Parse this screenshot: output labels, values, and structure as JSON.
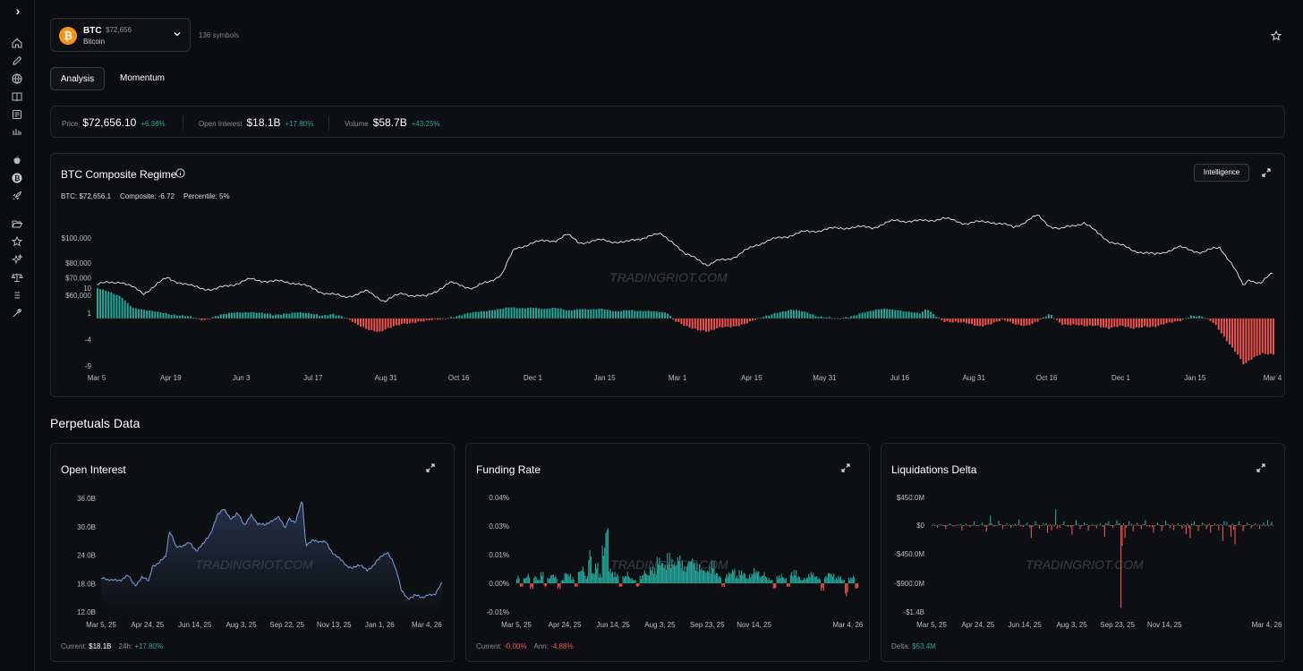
{
  "header": {
    "symbol": {
      "ticker": "BTC",
      "price": "$72,656",
      "name": "Bitcoin",
      "logo_glyph": "₿"
    },
    "symbols_count": "136 symbols"
  },
  "tabs": [
    {
      "label": "Analysis",
      "active": true
    },
    {
      "label": "Momentum",
      "active": false
    }
  ],
  "stats": {
    "price": {
      "label": "Price",
      "value": "$72,656.10",
      "change": "+6.38%"
    },
    "open_interest": {
      "label": "Open Interest",
      "value": "$18.1B",
      "change": "+17.80%"
    },
    "volume": {
      "label": "Volume",
      "value": "$58.7B",
      "change": "+43.25%"
    }
  },
  "regime": {
    "title": "BTC Composite Regime",
    "intelligence_label": "Intelligence",
    "meta": {
      "btc": "BTC: $72,656.1",
      "composite": "Composite: -6.72",
      "percentile": "Percentile: 5%"
    },
    "watermark": "TRADINGRIOT.COM"
  },
  "perps": {
    "title": "Perpetuals Data",
    "open_interest": {
      "title": "Open Interest",
      "current_label": "Current:",
      "current_value": "$18.1B",
      "change_label": "24h:",
      "change_value": "+17.80%"
    },
    "funding_rate": {
      "title": "Funding Rate",
      "current_label": "Current:",
      "current_value": "-0.00%",
      "ann_label": "Ann:",
      "ann_value": "-4.88%"
    },
    "liquidations": {
      "title": "Liquidations Delta",
      "delta_label": "Delta:",
      "delta_value": "$53.4M"
    }
  },
  "colors": {
    "up": "#26a69a",
    "down": "#ef5350",
    "oi_line": "#7c9fe0",
    "accent_btc": "#f7931a"
  },
  "chart_data": [
    {
      "id": "regime",
      "type": "line",
      "title": "BTC Composite Regime",
      "price_ticks": [
        "$100,000",
        "$80,000",
        "$70,000",
        "$60,000"
      ],
      "price_tick_values": [
        100000,
        80000,
        70000,
        60000
      ],
      "composite_ticks": [
        "10",
        "1",
        "-4",
        "-9"
      ],
      "composite_tick_values": [
        10,
        1,
        -4,
        -9
      ],
      "x_ticks": [
        "Mar 5",
        "Apr 19",
        "Jun 3",
        "Jul 17",
        "Aug 31",
        "Oct 16",
        "Dec 1",
        "Jan 15",
        "Mar 1",
        "Apr 15",
        "May 31",
        "Jul 16",
        "Aug 31",
        "Oct 16",
        "Dec 1",
        "Jan 15",
        "Mar 4"
      ],
      "x_tick_pos": [
        0,
        0.063,
        0.123,
        0.184,
        0.246,
        0.308,
        0.371,
        0.432,
        0.494,
        0.557,
        0.619,
        0.683,
        0.746,
        0.808,
        0.871,
        0.934,
        1.0
      ],
      "price_series": [
        [
          0,
          66000
        ],
        [
          0.02,
          68000
        ],
        [
          0.04,
          61000
        ],
        [
          0.06,
          70000
        ],
        [
          0.08,
          65000
        ],
        [
          0.1,
          63000
        ],
        [
          0.13,
          69000
        ],
        [
          0.15,
          68000
        ],
        [
          0.17,
          67000
        ],
        [
          0.19,
          62000
        ],
        [
          0.21,
          59000
        ],
        [
          0.23,
          62000
        ],
        [
          0.245,
          57000
        ],
        [
          0.26,
          61000
        ],
        [
          0.28,
          59000
        ],
        [
          0.3,
          67000
        ],
        [
          0.32,
          64000
        ],
        [
          0.335,
          68000
        ],
        [
          0.345,
          73000
        ],
        [
          0.355,
          90000
        ],
        [
          0.37,
          96000
        ],
        [
          0.39,
          98000
        ],
        [
          0.4,
          103000
        ],
        [
          0.41,
          96000
        ],
        [
          0.43,
          98000
        ],
        [
          0.45,
          96000
        ],
        [
          0.47,
          102000
        ],
        [
          0.48,
          103000
        ],
        [
          0.49,
          97000
        ],
        [
          0.5,
          86000
        ],
        [
          0.51,
          84000
        ],
        [
          0.52,
          78000
        ],
        [
          0.53,
          82000
        ],
        [
          0.545,
          85000
        ],
        [
          0.56,
          94000
        ],
        [
          0.58,
          100000
        ],
        [
          0.6,
          105000
        ],
        [
          0.62,
          108000
        ],
        [
          0.64,
          110000
        ],
        [
          0.66,
          110000
        ],
        [
          0.68,
          117000
        ],
        [
          0.7,
          116000
        ],
        [
          0.72,
          119000
        ],
        [
          0.74,
          114000
        ],
        [
          0.76,
          116000
        ],
        [
          0.78,
          110000
        ],
        [
          0.8,
          122000
        ],
        [
          0.81,
          112000
        ],
        [
          0.82,
          108000
        ],
        [
          0.84,
          115000
        ],
        [
          0.85,
          105000
        ],
        [
          0.86,
          98000
        ],
        [
          0.88,
          90000
        ],
        [
          0.9,
          86000
        ],
        [
          0.92,
          92000
        ],
        [
          0.93,
          90000
        ],
        [
          0.94,
          88000
        ],
        [
          0.955,
          92000
        ],
        [
          0.965,
          80000
        ],
        [
          0.975,
          65000
        ],
        [
          0.98,
          69000
        ],
        [
          0.99,
          67000
        ],
        [
          1.0,
          72656
        ]
      ],
      "composite_series": [
        [
          0,
          10
        ],
        [
          0.02,
          7
        ],
        [
          0.03,
          3
        ],
        [
          0.04,
          2
        ],
        [
          0.05,
          1.5
        ],
        [
          0.06,
          1
        ],
        [
          0.07,
          0.5
        ],
        [
          0.08,
          0.2
        ],
        [
          0.09,
          -0.3
        ],
        [
          0.1,
          0.5
        ],
        [
          0.11,
          0.8
        ],
        [
          0.12,
          1.2
        ],
        [
          0.13,
          1.5
        ],
        [
          0.14,
          1
        ],
        [
          0.15,
          0.5
        ],
        [
          0.16,
          1
        ],
        [
          0.17,
          1.4
        ],
        [
          0.18,
          0.8
        ],
        [
          0.19,
          0.5
        ],
        [
          0.2,
          1.0
        ],
        [
          0.21,
          0.2
        ],
        [
          0.215,
          -0.5
        ],
        [
          0.22,
          -1.2
        ],
        [
          0.23,
          -2
        ],
        [
          0.24,
          -2.5
        ],
        [
          0.25,
          -1.8
        ],
        [
          0.26,
          -1
        ],
        [
          0.27,
          -0.6
        ],
        [
          0.28,
          -0.5
        ],
        [
          0.29,
          -0.3
        ],
        [
          0.3,
          0.3
        ],
        [
          0.31,
          0.7
        ],
        [
          0.32,
          1.2
        ],
        [
          0.33,
          1.8
        ],
        [
          0.34,
          2.5
        ],
        [
          0.35,
          3
        ],
        [
          0.36,
          2.6
        ],
        [
          0.37,
          3.2
        ],
        [
          0.38,
          2.5
        ],
        [
          0.39,
          2.8
        ],
        [
          0.4,
          2
        ],
        [
          0.41,
          2.6
        ],
        [
          0.42,
          2.2
        ],
        [
          0.43,
          2.5
        ],
        [
          0.44,
          1.8
        ],
        [
          0.45,
          2.1
        ],
        [
          0.46,
          1.6
        ],
        [
          0.47,
          1.9
        ],
        [
          0.48,
          1.5
        ],
        [
          0.485,
          1
        ],
        [
          0.49,
          -0.5
        ],
        [
          0.5,
          -1.5
        ],
        [
          0.51,
          -2
        ],
        [
          0.52,
          -2.5
        ],
        [
          0.53,
          -1.8
        ],
        [
          0.54,
          -1.5
        ],
        [
          0.55,
          -1
        ],
        [
          0.56,
          -0.3
        ],
        [
          0.57,
          0.5
        ],
        [
          0.58,
          1.5
        ],
        [
          0.59,
          2.2
        ],
        [
          0.6,
          1.5
        ],
        [
          0.61,
          0.6
        ],
        [
          0.62,
          0.3
        ],
        [
          0.63,
          -0.2
        ],
        [
          0.64,
          0.3
        ],
        [
          0.65,
          1.2
        ],
        [
          0.66,
          2
        ],
        [
          0.67,
          2.5
        ],
        [
          0.68,
          2.2
        ],
        [
          0.69,
          1.5
        ],
        [
          0.7,
          0.8
        ],
        [
          0.705,
          2.5
        ],
        [
          0.71,
          1
        ],
        [
          0.72,
          -0.5
        ],
        [
          0.73,
          -0.8
        ],
        [
          0.74,
          -1
        ],
        [
          0.75,
          -1.4
        ],
        [
          0.76,
          -1
        ],
        [
          0.77,
          -0.4
        ],
        [
          0.78,
          -1
        ],
        [
          0.79,
          -1.3
        ],
        [
          0.8,
          -0.6
        ],
        [
          0.81,
          0.8
        ],
        [
          0.82,
          -1
        ],
        [
          0.83,
          -1.2
        ],
        [
          0.84,
          -1.6
        ],
        [
          0.85,
          -1.3
        ],
        [
          0.86,
          -1.8
        ],
        [
          0.87,
          -1.5
        ],
        [
          0.88,
          -2
        ],
        [
          0.89,
          -1.4
        ],
        [
          0.9,
          -1.6
        ],
        [
          0.91,
          -1
        ],
        [
          0.92,
          -0.4
        ],
        [
          0.93,
          0.6
        ],
        [
          0.94,
          0.2
        ],
        [
          0.95,
          -1
        ],
        [
          0.96,
          -4
        ],
        [
          0.97,
          -7
        ],
        [
          0.975,
          -9
        ],
        [
          0.98,
          -8
        ],
        [
          0.99,
          -6.5
        ],
        [
          1.0,
          -6.72
        ]
      ]
    },
    {
      "id": "open_interest",
      "type": "area",
      "title": "Open Interest",
      "y_ticks": [
        "36.0B",
        "30.0B",
        "24.0B",
        "18.0B",
        "12.0B"
      ],
      "y_tick_values": [
        36,
        30,
        24,
        18,
        12
      ],
      "ylim": [
        12,
        36
      ],
      "x_ticks": [
        "Mar 5, 25",
        "Apr 24, 25",
        "Jun 14, 25",
        "Aug 3, 25",
        "Sep 22, 25",
        "Nov 13, 25",
        "Jan 1, 26",
        "Mar 4, 26"
      ],
      "x_tick_pos": [
        0.0,
        0.136,
        0.275,
        0.411,
        0.545,
        0.683,
        0.817,
        0.955
      ],
      "series": [
        [
          0,
          19.2
        ],
        [
          0.02,
          18.5
        ],
        [
          0.04,
          19.1
        ],
        [
          0.06,
          18.6
        ],
        [
          0.08,
          19.6
        ],
        [
          0.1,
          17.8
        ],
        [
          0.12,
          19.2
        ],
        [
          0.14,
          18.4
        ],
        [
          0.15,
          21.8
        ],
        [
          0.17,
          22.5
        ],
        [
          0.19,
          23.5
        ],
        [
          0.2,
          29
        ],
        [
          0.21,
          28
        ],
        [
          0.22,
          26
        ],
        [
          0.24,
          25.6
        ],
        [
          0.26,
          26.8
        ],
        [
          0.28,
          25
        ],
        [
          0.3,
          26.2
        ],
        [
          0.32,
          28.5
        ],
        [
          0.34,
          32.5
        ],
        [
          0.36,
          33.5
        ],
        [
          0.38,
          31.8
        ],
        [
          0.4,
          33
        ],
        [
          0.42,
          30
        ],
        [
          0.44,
          32.8
        ],
        [
          0.46,
          30.5
        ],
        [
          0.48,
          30.2
        ],
        [
          0.5,
          31.5
        ],
        [
          0.52,
          32
        ],
        [
          0.54,
          29.5
        ],
        [
          0.55,
          32
        ],
        [
          0.57,
          31
        ],
        [
          0.59,
          35.5
        ],
        [
          0.6,
          26
        ],
        [
          0.62,
          27.5
        ],
        [
          0.64,
          26.5
        ],
        [
          0.66,
          26.8
        ],
        [
          0.68,
          24.5
        ],
        [
          0.7,
          23
        ],
        [
          0.72,
          21.8
        ],
        [
          0.74,
          21.5
        ],
        [
          0.76,
          21.6
        ],
        [
          0.78,
          21
        ],
        [
          0.8,
          22
        ],
        [
          0.82,
          23.4
        ],
        [
          0.84,
          24.8
        ],
        [
          0.855,
          23
        ],
        [
          0.87,
          19.5
        ],
        [
          0.88,
          16.5
        ],
        [
          0.9,
          15
        ],
        [
          0.92,
          15.5
        ],
        [
          0.94,
          14.8
        ],
        [
          0.96,
          16
        ],
        [
          0.98,
          15.5
        ],
        [
          1.0,
          18.1
        ]
      ]
    },
    {
      "id": "funding_rate",
      "type": "bar",
      "title": "Funding Rate",
      "y_ticks": [
        "0.04%",
        "0.03%",
        "0.01%",
        "0.00%",
        "-0.01%"
      ],
      "y_tick_values": [
        0.04,
        0.03,
        0.01,
        0.0,
        -0.01
      ],
      "ylim": [
        -0.01,
        0.04
      ],
      "x_ticks": [
        "Mar 5, 25",
        "Apr 24, 25",
        "Jun 14, 25",
        "Aug 3, 25",
        "Sep 23, 25",
        "Nov 14, 25",
        "Mar 4, 26"
      ],
      "x_tick_pos": [
        0.0,
        0.142,
        0.284,
        0.421,
        0.56,
        0.697,
        0.972
      ],
      "values": [
        0.004,
        -0.002,
        0.003,
        0.005,
        -0.003,
        0.004,
        0.002,
        0.006,
        -0.002,
        0.003,
        0.005,
        0.004,
        -0.003,
        0.002,
        0.006,
        0.005,
        0.003,
        -0.002,
        0.007,
        0.009,
        0.004,
        0.018,
        0.006,
        0.011,
        0.005,
        0.02,
        0.032,
        0.008,
        0.006,
        0.005,
        -0.002,
        0.004,
        0.006,
        0.003,
        0.002,
        -0.002,
        0.004,
        0.007,
        0.005,
        0.009,
        0.008,
        0.014,
        0.012,
        0.01,
        0.016,
        0.013,
        0.011,
        0.015,
        0.012,
        0.009,
        0.013,
        0.014,
        0.011,
        0.01,
        0.008,
        0.007,
        0.009,
        0.012,
        0.006,
        0.004,
        -0.002,
        0.005,
        0.006,
        0.008,
        0.004,
        0.007,
        0.006,
        0.003,
        0.005,
        0.008,
        0.007,
        0.004,
        0.006,
        0.003,
        0.002,
        -0.003,
        0.004,
        0.005,
        0.003,
        -0.002,
        0.006,
        0.007,
        0.004,
        0.002,
        0.003,
        0.005,
        0.006,
        0.004,
        0.003,
        -0.004,
        0.004,
        0.006,
        0.005,
        0.003,
        0.004,
        0.002,
        -0.007,
        0.003,
        0.004,
        -0.003
      ]
    },
    {
      "id": "liquidations_delta",
      "type": "bar",
      "title": "Liquidations Delta",
      "y_ticks": [
        "$450.0M",
        "$0",
        "-$450.0M",
        "-$900.0M",
        "-$1.4B"
      ],
      "y_tick_values": [
        450,
        0,
        -450,
        -900,
        -1400
      ],
      "ylim": [
        -1400,
        450
      ],
      "x_ticks": [
        "Mar 5, 25",
        "Apr 24, 25",
        "Jun 14, 25",
        "Aug 3, 25",
        "Sep 23, 25",
        "Nov 14, 25",
        "Mar 4, 26"
      ],
      "x_tick_pos": [
        0.0,
        0.136,
        0.273,
        0.411,
        0.545,
        0.683,
        0.983
      ],
      "values": [
        20,
        -40,
        15,
        -60,
        30,
        -20,
        10,
        -80,
        25,
        -30,
        60,
        -15,
        40,
        -100,
        150,
        -20,
        70,
        -60,
        30,
        -40,
        20,
        90,
        -30,
        40,
        -200,
        60,
        -50,
        30,
        -120,
        -80,
        250,
        -40,
        60,
        -30,
        -150,
        80,
        -60,
        40,
        -80,
        20,
        -50,
        30,
        -180,
        60,
        -40,
        80,
        -1300,
        -200,
        60,
        -100,
        40,
        -60,
        80,
        -30,
        -120,
        40,
        -90,
        70,
        -50,
        -80,
        30,
        -60,
        -140,
        -200,
        60,
        -90,
        40,
        -60,
        -120,
        30,
        -80,
        -250,
        50,
        -180,
        -300,
        60,
        -90,
        40,
        -50,
        30,
        -60,
        40,
        80,
        53
      ]
    }
  ]
}
